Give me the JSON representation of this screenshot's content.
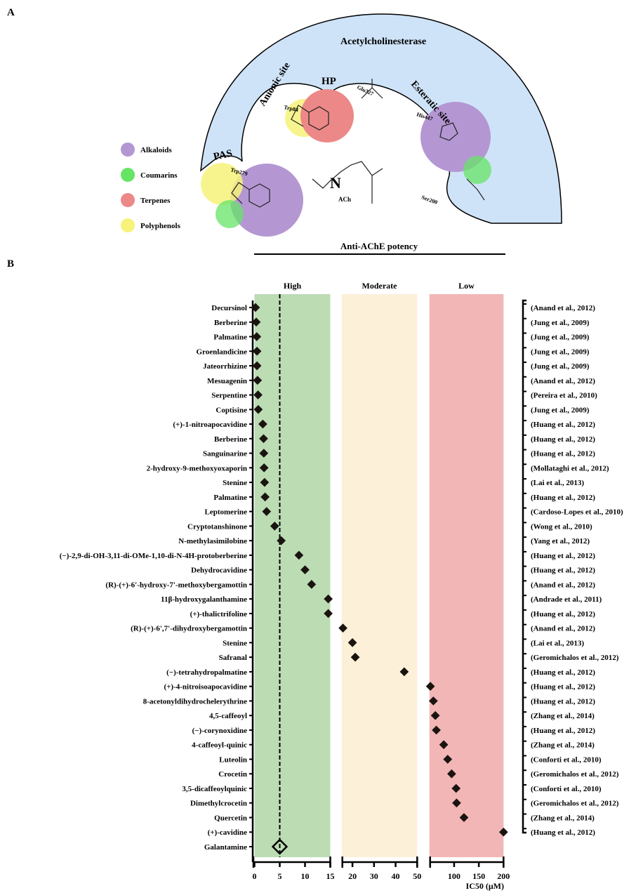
{
  "panel_a": {
    "label": "A",
    "enzyme": "Acetylcholinesterase",
    "sites": {
      "anionic": "Anionic site",
      "hp": "HP",
      "esteratic": "Esteratic site",
      "pas": "PAS"
    },
    "residues": {
      "trp84": "Trp84",
      "glu327": "Glu327",
      "his447": "His447",
      "trp279": "Trp279",
      "ser200": "Ser200"
    },
    "ligand": "ACh",
    "legend": [
      {
        "label": "Alkaloids",
        "color": "#b497d2"
      },
      {
        "label": "Coumarins",
        "color": "#66e466"
      },
      {
        "label": "Terpenes",
        "color": "#ec8888"
      },
      {
        "label": "Polyphenols",
        "color": "#f6f27a"
      }
    ],
    "enzyme_color": "#cfe3f8"
  },
  "chart_data": {
    "panel_label": "B",
    "type": "scatter",
    "title": "Anti-AChE potency",
    "xlabel": "IC50 (μM)",
    "xlabel_main": "IC",
    "xlabel_sub": "50",
    "xlabel_unit": "(μM)",
    "x_segments": [
      {
        "range": [
          0,
          15
        ],
        "ticks": [
          "0",
          "5",
          "10",
          "15"
        ],
        "tick_values": [
          0,
          5,
          10,
          15
        ]
      },
      {
        "range": [
          15,
          50
        ],
        "ticks": [
          "20",
          "30",
          "40",
          "50"
        ],
        "tick_values": [
          20,
          30,
          40,
          50
        ]
      },
      {
        "range": [
          50,
          200
        ],
        "ticks": [
          "100",
          "150",
          "200"
        ],
        "tick_values": [
          100,
          150,
          200
        ]
      }
    ],
    "bands": [
      {
        "label": "High",
        "range": [
          0,
          15
        ],
        "color": "#bcdcb4"
      },
      {
        "label": "Moderate",
        "range": [
          15,
          50
        ],
        "color": "#fcf0d8"
      },
      {
        "label": "Low",
        "range": [
          50,
          200
        ],
        "color": "#f2b6b6"
      }
    ],
    "reference_line": {
      "value": 5,
      "compound": "Galantamine",
      "style": "dashed"
    },
    "grid": false,
    "points": [
      {
        "name": "Decursinol",
        "ic50": 0.2,
        "ref": "(Anand et al., 2012)"
      },
      {
        "name": "Berberine",
        "ic50": 0.35,
        "ref": "(Jung et al., 2009)"
      },
      {
        "name": "Palmatine",
        "ic50": 0.45,
        "ref": "(Jung et al., 2009)"
      },
      {
        "name": "Groenlandicine",
        "ic50": 0.5,
        "ref": "(Jung et al., 2009)"
      },
      {
        "name": "Jateorrhizine",
        "ic50": 0.5,
        "ref": "(Jung et al., 2009)"
      },
      {
        "name": "Mesuagenin",
        "ic50": 0.6,
        "ref": "(Anand et al., 2012)"
      },
      {
        "name": "Serpentine",
        "ic50": 0.7,
        "ref": "(Pereira et al., 2010)"
      },
      {
        "name": "Coptisine",
        "ic50": 0.75,
        "ref": "(Jung et al., 2009)"
      },
      {
        "name": "(+)-1-nitroapocavidine",
        "ic50": 1.65,
        "ref": "(Huang et al., 2012)"
      },
      {
        "name": "Berberine",
        "ic50": 1.8,
        "ref": "(Huang et al., 2012)"
      },
      {
        "name": "Sanguinarine",
        "ic50": 1.85,
        "ref": "(Huang et al., 2012)"
      },
      {
        "name": "2-hydroxy-9-methoxyoxaporin",
        "ic50": 1.9,
        "ref": "(Mollataghi et al., 2012)"
      },
      {
        "name": "Stenine",
        "ic50": 2.0,
        "ref": "(Lai et al., 2013)"
      },
      {
        "name": "Palmatine",
        "ic50": 2.1,
        "ref": "(Huang et al., 2012)"
      },
      {
        "name": "Leptomerine",
        "ic50": 2.4,
        "ref": "(Cardoso-Lopes et al., 2010)"
      },
      {
        "name": "Cryptotanshinone",
        "ic50": 4.0,
        "ref": "(Wong et al., 2010)"
      },
      {
        "name": "N-methylasimilobine",
        "ic50": 5.3,
        "ref": "(Yang et al., 2012)"
      },
      {
        "name": "(−)-2,9-di-OH-3,11-di-OMe-1,10-di-N-4H-protoberberine",
        "ic50": 8.8,
        "ref": "(Huang et al., 2012)"
      },
      {
        "name": "Dehydrocavidine",
        "ic50": 10.0,
        "ref": "(Huang et al., 2012)"
      },
      {
        "name": "(R)-(+)-6'-hydroxy-7'-methoxybergamottin",
        "ic50": 11.3,
        "ref": "(Anand et al., 2012)"
      },
      {
        "name": "11β-hydroxygalanthamine",
        "ic50": 14.6,
        "ref": "(Andrade et al., 2011)"
      },
      {
        "name": "(+)-thalictrifoline",
        "ic50": 14.6,
        "ref": "(Huang et al., 2012)"
      },
      {
        "name": "(R)-(+)-6',7'-dihydroxybergamottin",
        "ic50": 15.6,
        "ref": "(Anand et al., 2012)"
      },
      {
        "name": "Stenine",
        "ic50": 20,
        "ref": "(Lai et al., 2013)"
      },
      {
        "name": "Safranal",
        "ic50": 21.3,
        "ref": "(Geromichalos et al., 2012)"
      },
      {
        "name": "(−)-tetrahydropalmatine",
        "ic50": 44,
        "ref": "(Huang et al., 2012)"
      },
      {
        "name": "(+)-4-nitroisoapocavidine",
        "ic50": 52,
        "ref": "(Huang et al., 2012)"
      },
      {
        "name": "8-acetonyldihydrochelerythrine",
        "ic50": 58,
        "ref": "(Huang et al., 2012)"
      },
      {
        "name": "4,5-caffeoyl",
        "ic50": 62,
        "ref": "(Zhang et al., 2014)"
      },
      {
        "name": "(−)-corynoxidine",
        "ic50": 64,
        "ref": "(Huang et al., 2012)"
      },
      {
        "name": "4-caffeoyl-quinic",
        "ic50": 79,
        "ref": "(Zhang et al., 2014)"
      },
      {
        "name": "Luteolin",
        "ic50": 87,
        "ref": "(Conforti et al., 2010)"
      },
      {
        "name": "Crocetin",
        "ic50": 95,
        "ref": "(Geromichalos et al., 2012)"
      },
      {
        "name": "3,5-dicaffeoylquinic",
        "ic50": 104,
        "ref": "(Conforti et al., 2010)"
      },
      {
        "name": "Dimethylcrocetin",
        "ic50": 105,
        "ref": "(Geromichalos et al., 2012)"
      },
      {
        "name": "Quercetin",
        "ic50": 120,
        "ref": "(Zhang et al., 2014)"
      },
      {
        "name": "(+)-cavidine",
        "ic50": 200,
        "ref": "(Huang et al., 2012)"
      },
      {
        "name": "Galantamine",
        "ic50": 5,
        "ref": "",
        "marker": "open-diamond"
      }
    ]
  }
}
